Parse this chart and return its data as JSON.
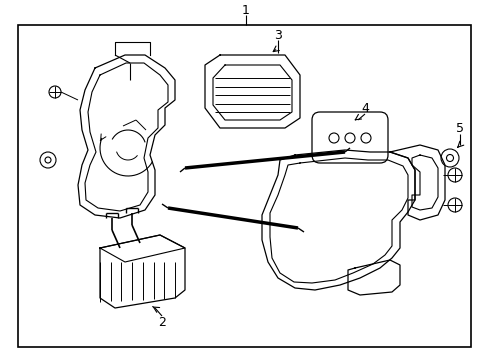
{
  "background_color": "#ffffff",
  "border_color": "#000000",
  "line_color": "#000000",
  "text_color": "#000000",
  "figsize": [
    4.89,
    3.6
  ],
  "dpi": 100
}
